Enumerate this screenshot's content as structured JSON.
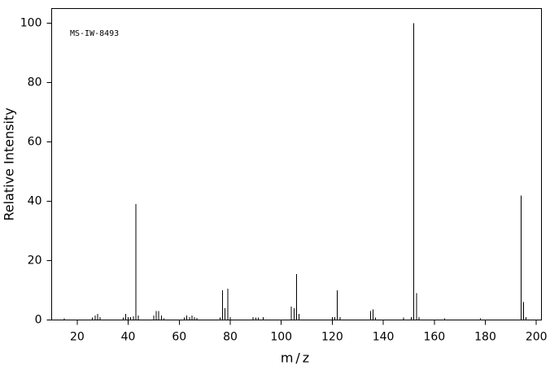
{
  "chart_data": {
    "type": "stem",
    "annotation": "MS-IW-8493",
    "xlabel": "m/z",
    "ylabel": "Relative Intensity",
    "x": [
      15,
      26,
      27,
      28,
      29,
      38,
      39,
      40,
      41,
      42,
      43,
      44,
      50,
      51,
      52,
      53,
      54,
      62,
      63,
      64,
      65,
      66,
      67,
      76,
      77,
      78,
      79,
      80,
      89,
      90,
      91,
      93,
      104,
      105,
      106,
      107,
      120,
      121,
      122,
      123,
      135,
      136,
      137,
      148,
      151,
      152,
      153,
      154,
      164,
      178,
      194,
      195,
      196
    ],
    "values": [
      0.5,
      0.8,
      1.5,
      2,
      1,
      0.8,
      2,
      1,
      1,
      1.3,
      39,
      1.5,
      1.5,
      3,
      3,
      1.5,
      0.5,
      0.8,
      1.5,
      1,
      1.5,
      1,
      0.7,
      0.8,
      10,
      4,
      10.5,
      1,
      1,
      0.8,
      0.8,
      1,
      4.5,
      4,
      15.5,
      2,
      1,
      1,
      10,
      1,
      3,
      3.5,
      0.8,
      0.8,
      1,
      100,
      9,
      1,
      0.5,
      0.5,
      42,
      6,
      1
    ],
    "color": "#000000",
    "xlim": [
      10,
      202
    ],
    "ylim": [
      0,
      105
    ],
    "xticks": [
      20,
      40,
      60,
      80,
      100,
      120,
      140,
      160,
      180,
      200
    ],
    "yticks": [
      0,
      20,
      40,
      60,
      80,
      100
    ]
  }
}
